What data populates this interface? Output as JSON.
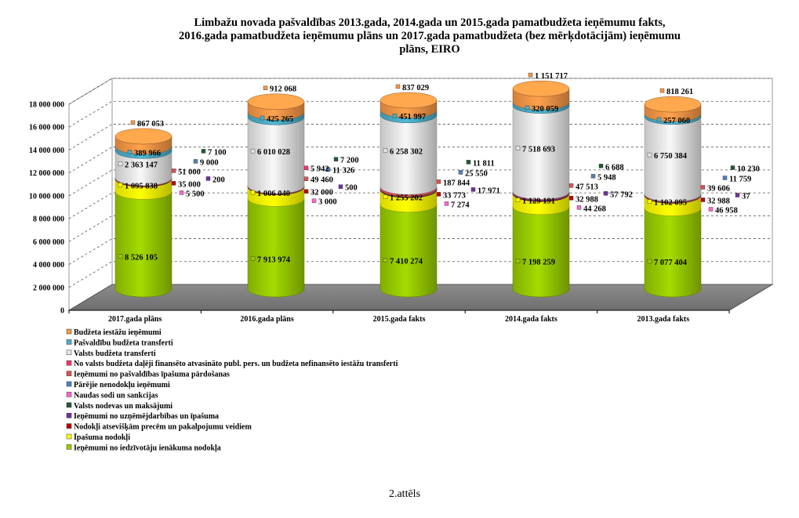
{
  "chart_data": {
    "type": "bar",
    "title": [
      "Limbažu novada pašvaldības 2013.gada, 2014.gada un 2015.gada pamatbudžeta ieņēmumu fakts,",
      "2016.gada pamatbudžeta  ieņēmumu plāns un 2017.gada pamatbudžeta (bez mērķdotācijām) ieņēmumu",
      "plāns, EIRO"
    ],
    "stacked": true,
    "ylim": [
      0,
      18000000
    ],
    "yticks": [
      "0",
      "2 000 000",
      "4 000 000",
      "6 000 000",
      "8 000 000",
      "10 000 000",
      "12 000 000",
      "14 000 000",
      "16 000 000",
      "18 000 000"
    ],
    "ytick_values": [
      0,
      2000000,
      4000000,
      6000000,
      8000000,
      10000000,
      12000000,
      14000000,
      16000000,
      18000000
    ],
    "grid": true,
    "legend_position": "bottom-left",
    "categories": [
      "2017.gada plāns",
      "2016.gada plāns",
      "2015.gada fakts",
      "2014.gada fakts",
      "2013.gada fakts"
    ],
    "series": [
      {
        "name": "Ieņēmumi no iedzīvotāju ienākuma nodokļa",
        "color": "#99cc00",
        "values": [
          8526105,
          7913974,
          7410274,
          7198259,
          7077404
        ],
        "labels": [
          "8 526 105",
          "7 913 974",
          "7 410 274",
          "7 198 259",
          "7 077 404"
        ]
      },
      {
        "name": "Īpašuma nodokļi",
        "color": "#ffff00",
        "values": [
          1095838,
          1006040,
          1255202,
          1129191,
          1102095
        ],
        "labels": [
          "1 095 838",
          "1 006 040",
          "1 255 202",
          "1 129 191",
          "1 102 095"
        ]
      },
      {
        "name": "Nodokļi atsevišķām precēm un pakalpojumu veidiem",
        "color": "#c00000",
        "values": [
          35000,
          32000,
          33773,
          32988,
          32988
        ],
        "labels": [
          "35 000",
          "32 000",
          "33 773",
          "32 988",
          "32 988"
        ]
      },
      {
        "name": "Ieņēmumi no uzņēmējdarbības un īpašuma",
        "color": "#7030a0",
        "values": [
          200,
          500,
          17971,
          57792,
          37
        ],
        "labels": [
          "200",
          "500",
          "17 971",
          "57 792",
          "37"
        ]
      },
      {
        "name": "Valsts nodevas un maksājumi",
        "color": "#1e5a32",
        "values": [
          7100,
          7200,
          11811,
          6688,
          10230
        ],
        "labels": [
          "7 100",
          "7 200",
          "11 811",
          "6 688",
          "10 230"
        ]
      },
      {
        "name": "Naudas sodi un sankcijas",
        "color": "#ff66cc",
        "values": [
          5500,
          3000,
          7274,
          44268,
          46958
        ],
        "labels": [
          "5 500",
          "3 000",
          "7 274",
          "44 268",
          "46 958"
        ]
      },
      {
        "name": "Pārējie nenodokļu ieņēmumi",
        "color": "#4f81bd",
        "values": [
          9000,
          11326,
          25550,
          5948,
          11759
        ],
        "labels": [
          "9 000",
          "11 326",
          "25 550",
          "5 948",
          "11 759"
        ]
      },
      {
        "name": "Ieņēmumi no pašvaldības  īpašuma pārdošanas",
        "color": "#e0524f",
        "values": [
          51000,
          49460,
          187844,
          47513,
          39606
        ],
        "labels": [
          "51 000",
          "49 460",
          "187 844",
          "47 513",
          "39 606"
        ]
      },
      {
        "name": "No valsts budžeta daļēji finansēto atvasināto publ. pers. un budžeta nefinansēto iestāžu transferti",
        "color": "#ff3366",
        "values": [
          0,
          5942,
          0,
          0,
          0
        ],
        "labels": [
          "",
          "5 942",
          "",
          "",
          ""
        ]
      },
      {
        "name": "Valsts budžeta transferti",
        "color": "#e6e6e6",
        "values": [
          2363147,
          6010028,
          6258302,
          7518693,
          6750384
        ],
        "labels": [
          "2 363 147",
          "6 010 028",
          "6 258 302",
          "7 518 693",
          "6 750 384"
        ]
      },
      {
        "name": "Pašvaldību budžeta transferti",
        "color": "#4bacc6",
        "values": [
          389966,
          425265,
          451997,
          320059,
          257060
        ],
        "labels": [
          "389 966",
          "425 265",
          "451 997",
          "320 059",
          "257 060"
        ]
      },
      {
        "name": "Budžeta iestāžu ieņēmumi",
        "color": "#f79646",
        "values": [
          867053,
          912068,
          837029,
          1151717,
          818261
        ],
        "labels": [
          "867 053",
          "912 068",
          "837 029",
          "1 151 717",
          "818 261"
        ]
      }
    ]
  },
  "caption": "2.attēls"
}
